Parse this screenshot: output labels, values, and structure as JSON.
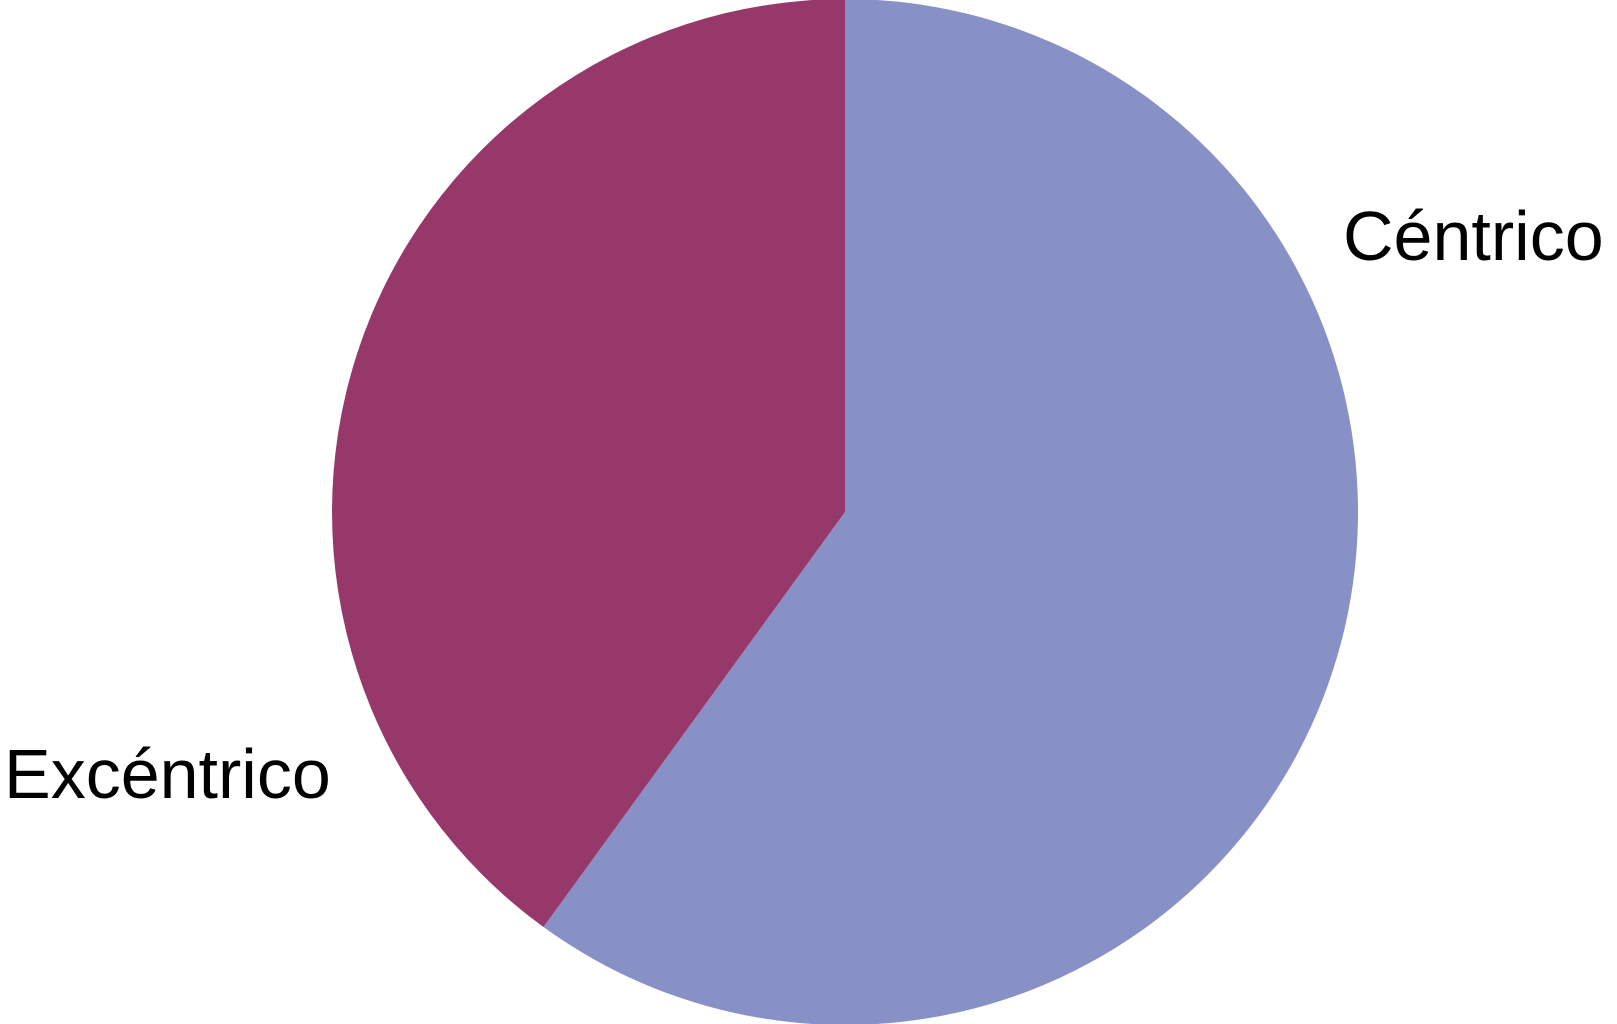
{
  "chart_data": {
    "type": "pie",
    "title": "",
    "start_angle": "top, clockwise",
    "slices": [
      {
        "label": "Céntrico",
        "value": 60,
        "color": "#8791C6"
      },
      {
        "label": "Excéntrico",
        "value": 40,
        "color": "#97386A"
      }
    ],
    "legend": "none (direct labels)"
  }
}
